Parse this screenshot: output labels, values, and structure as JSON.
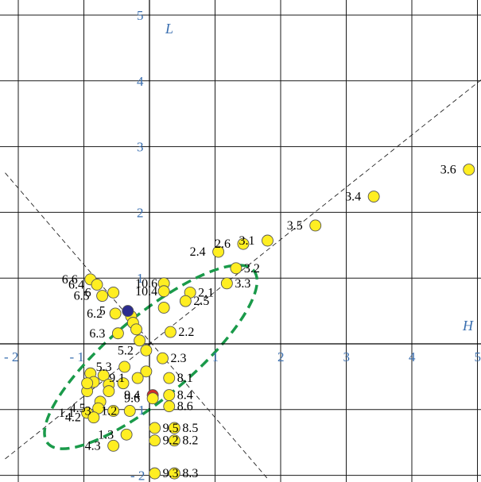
{
  "chart_data": {
    "type": "scatter",
    "title": "",
    "xlabel": "H",
    "ylabel": "L",
    "xlim": [
      -2.2,
      5.1
    ],
    "ylim": [
      -2.05,
      5.1
    ],
    "xticks": [
      -2,
      -1,
      1,
      2,
      3,
      4,
      5
    ],
    "yticks": [
      -2,
      -1,
      1,
      2,
      3,
      4,
      5
    ],
    "xtick_labels": [
      "- 2",
      "- 1",
      "1",
      "2",
      "3",
      "4",
      "5"
    ],
    "ytick_labels": [
      "- 2",
      "- 1",
      "1",
      "2",
      "3",
      "4",
      "5"
    ],
    "grid": true,
    "point_color": "#ffee22",
    "highlight_colors": {
      "blue": "#2b2b8f",
      "red": "#d42a2a"
    },
    "ellipse_color": "#1a9a4a",
    "labeled_points": [
      {
        "label": "3.6",
        "x": 4.87,
        "y": 2.65
      },
      {
        "label": "3.4",
        "x": 3.42,
        "y": 2.24
      },
      {
        "label": "3.5",
        "x": 2.53,
        "y": 1.8
      },
      {
        "label": "3.1",
        "x": 1.8,
        "y": 1.57
      },
      {
        "label": "2.6",
        "x": 1.43,
        "y": 1.52
      },
      {
        "label": "2.4",
        "x": 1.05,
        "y": 1.4
      },
      {
        "label": "3.2",
        "x": 1.32,
        "y": 1.15
      },
      {
        "label": "3.3",
        "x": 1.18,
        "y": 0.92
      },
      {
        "label": "2.1",
        "x": 0.62,
        "y": 0.78
      },
      {
        "label": "2.5",
        "x": 0.55,
        "y": 0.65
      },
      {
        "label": "10.6",
        "x": 0.22,
        "y": 0.92
      },
      {
        "label": "10.4",
        "x": 0.22,
        "y": 0.8
      },
      {
        "label": "2.2",
        "x": 0.32,
        "y": 0.18
      },
      {
        "label": "2.3",
        "x": 0.2,
        "y": -0.22
      },
      {
        "label": "6.6",
        "x": -0.9,
        "y": 0.98
      },
      {
        "label": "6.4",
        "x": -0.8,
        "y": 0.9
      },
      {
        "label": "6.5",
        "x": -0.72,
        "y": 0.73
      },
      {
        "label": "6",
        "x": -0.55,
        "y": 0.78
      },
      {
        "label": "5",
        "x": -0.33,
        "y": 0.5,
        "color": "blue"
      },
      {
        "label": "6.2",
        "x": -0.52,
        "y": 0.46
      },
      {
        "label": "6.3",
        "x": -0.48,
        "y": 0.16
      },
      {
        "label": "5.2",
        "x": -0.05,
        "y": -0.1
      },
      {
        "label": "5.3",
        "x": -0.38,
        "y": -0.35
      },
      {
        "label": "9.1",
        "x": -0.18,
        "y": -0.52
      },
      {
        "label": "8.1",
        "x": 0.3,
        "y": -0.52
      },
      {
        "label": "9.4",
        "x": 0.05,
        "y": -0.78,
        "color": "red"
      },
      {
        "label": "8.4",
        "x": 0.3,
        "y": -0.78
      },
      {
        "label": "9.6",
        "x": 0.05,
        "y": -0.83
      },
      {
        "label": "8.6",
        "x": 0.3,
        "y": -0.95
      },
      {
        "label": "1.2",
        "x": -0.3,
        "y": -1.02
      },
      {
        "label": "4.5",
        "x": -0.78,
        "y": -0.98
      },
      {
        "label": "1.1",
        "x": -0.95,
        "y": -1.05
      },
      {
        "label": "3",
        "x": -0.55,
        "y": -1.02
      },
      {
        "label": "4.2",
        "x": -0.85,
        "y": -1.12
      },
      {
        "label": "1.3",
        "x": -0.35,
        "y": -1.38
      },
      {
        "label": "4.3",
        "x": -0.55,
        "y": -1.55
      },
      {
        "label": "9.5",
        "x": 0.08,
        "y": -1.28
      },
      {
        "label": "8.5",
        "x": 0.38,
        "y": -1.28
      },
      {
        "label": "9.2",
        "x": 0.08,
        "y": -1.47
      },
      {
        "label": "8.2",
        "x": 0.38,
        "y": -1.47
      },
      {
        "label": "9.3",
        "x": 0.08,
        "y": -1.97
      },
      {
        "label": "8.3",
        "x": 0.38,
        "y": -1.97
      }
    ],
    "unlabeled_points": [
      {
        "x": -0.28,
        "y": 0.42
      },
      {
        "x": -0.25,
        "y": 0.32
      },
      {
        "x": -0.2,
        "y": 0.22
      },
      {
        "x": -0.15,
        "y": 0.05
      },
      {
        "x": -0.05,
        "y": -0.42
      },
      {
        "x": 0.22,
        "y": 0.55
      },
      {
        "x": -0.9,
        "y": -0.45
      },
      {
        "x": -0.85,
        "y": -0.58
      },
      {
        "x": -0.95,
        "y": -0.72
      },
      {
        "x": -0.7,
        "y": -0.48
      },
      {
        "x": -0.62,
        "y": -0.62
      },
      {
        "x": -0.62,
        "y": -0.72
      },
      {
        "x": -0.4,
        "y": -0.6
      },
      {
        "x": -0.75,
        "y": -0.88
      },
      {
        "x": -0.95,
        "y": -0.6
      }
    ],
    "ellipse": {
      "cx": 0.02,
      "cy": -0.2,
      "rx_deg_major": 2.05,
      "ry_minor": 0.62,
      "angle_deg": 40
    },
    "dashed_lines": [
      {
        "from": [
          -2.2,
          -1.75
        ],
        "to": [
          5.1,
          4.05
        ]
      },
      {
        "from": [
          -2.2,
          2.6
        ],
        "to": [
          1.8,
          -2.05
        ]
      }
    ]
  }
}
